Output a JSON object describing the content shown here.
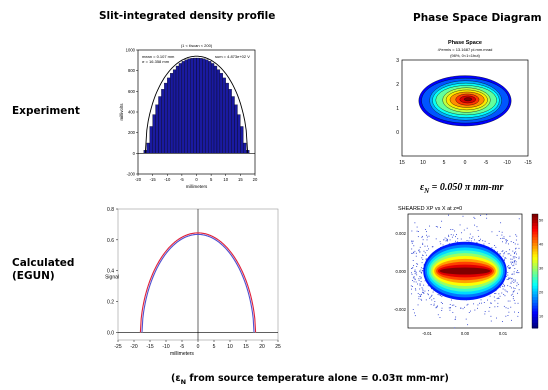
{
  "headers": {
    "profile": "Slit-integrated density profile",
    "phase": "Phase Space Diagram"
  },
  "rows": {
    "experiment": "Experiment",
    "calculated_line1": "Calculated",
    "calculated_line2": "(EGUN)"
  },
  "emittance_label": {
    "main": "ε",
    "sub": "N",
    "value": " = 0.050 π mm-mr"
  },
  "footer": {
    "open": "(ε",
    "sub": "N",
    "rest": " from source temperature alone = 0.03π mm-mr)"
  },
  "colors": {
    "bar_fill": "#1a1aa0",
    "curve_red": "#e0203a",
    "curve_blue": "#5050d0",
    "jet_low": "#00008f",
    "jet_high": "#800000"
  },
  "chart_data": [
    {
      "id": "experiment_profile",
      "type": "bar",
      "title": "Integrated profile",
      "subtitle": "(1 < t/scan < 200)",
      "annotations": [
        "mean = 0.107 mm",
        "σ = 16.358 mm",
        "sum = 4.873e+02 V"
      ],
      "xlabel": "millimeters",
      "ylabel": "millivolts",
      "xlim": [
        -20,
        20
      ],
      "ylim": [
        -200,
        1000
      ],
      "xticks": [
        -20,
        -15,
        -10,
        -5,
        0,
        5,
        10,
        15,
        20
      ],
      "yticks": [
        -200,
        0,
        200,
        400,
        600,
        800,
        1000
      ],
      "x": [
        -17.5,
        -16.5,
        -15.5,
        -14.5,
        -13.5,
        -12.5,
        -11.5,
        -10.5,
        -9.5,
        -8.5,
        -7.5,
        -6.5,
        -5.5,
        -4.5,
        -3.5,
        -2.5,
        -1.5,
        -0.5,
        0.5,
        1.5,
        2.5,
        3.5,
        4.5,
        5.5,
        6.5,
        7.5,
        8.5,
        9.5,
        10.5,
        11.5,
        12.5,
        13.5,
        14.5,
        15.5,
        16.5,
        17.5
      ],
      "values": [
        30,
        100,
        260,
        375,
        470,
        550,
        620,
        680,
        730,
        775,
        810,
        845,
        870,
        890,
        905,
        915,
        920,
        922,
        922,
        920,
        915,
        905,
        890,
        870,
        845,
        810,
        775,
        730,
        680,
        620,
        550,
        470,
        375,
        260,
        100,
        30
      ],
      "fit_curve": {
        "center": 0,
        "half_width": 17.5,
        "peak": 940
      }
    },
    {
      "id": "calculated_profile",
      "type": "line",
      "xlabel": "millimeters",
      "ylabel": "Signal",
      "xlim": [
        -25,
        25
      ],
      "ylim": [
        -0.05,
        0.8
      ],
      "xticks": [
        -25,
        -20,
        -15,
        -10,
        -5,
        0,
        5,
        10,
        15,
        20,
        25
      ],
      "yticks": [
        0.0,
        0.2,
        0.4,
        0.6,
        0.8
      ],
      "series": [
        {
          "half_width": 18.0,
          "peak": 0.645,
          "color": "red"
        },
        {
          "half_width": 17.5,
          "peak": 0.635,
          "color": "blue"
        }
      ]
    },
    {
      "id": "experiment_phase",
      "type": "heatmap",
      "title": "Phase Space",
      "subtitle_lines": [
        "4*ermis = 13.1687 pi.mm.mrad",
        "(98%, 0<1<1hut)"
      ],
      "xlim": [
        15,
        -15
      ],
      "ylim": [
        -1,
        3
      ],
      "xticks": [
        15,
        10,
        5,
        0,
        -5,
        -10,
        -15
      ],
      "yticks": [
        3,
        2,
        1,
        0
      ],
      "center": [
        0,
        1.3
      ],
      "spread": [
        11,
        1.0
      ]
    },
    {
      "id": "calculated_phase",
      "type": "heatmap",
      "title": "SHEARED XP vs X at z=0",
      "xlim": [
        -0.015,
        0.015
      ],
      "ylim": [
        -0.003,
        0.003
      ],
      "xticks": [
        "-0.01",
        "0.00",
        "0.01"
      ],
      "yticks": [
        "0.002",
        "0.000",
        "-0.002"
      ],
      "colorbar_ticks": [
        "50",
        "40",
        "30",
        "20",
        "10"
      ],
      "center": [
        0,
        0
      ],
      "spread": [
        0.011,
        0.0007
      ]
    }
  ]
}
